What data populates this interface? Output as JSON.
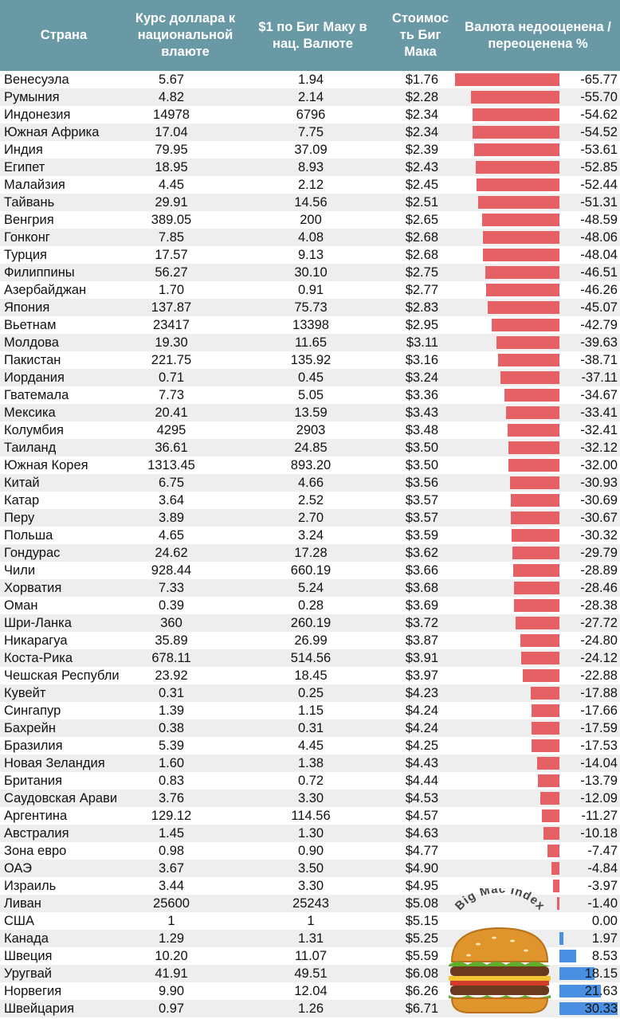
{
  "header": {
    "country": "Страна",
    "rate": "Курс доллара к\nнациональной\nвлаюте",
    "local_price": "$1 по Биг Маку в\nнац. Валюте",
    "usd_price": "Стоимос\nть Биг\nМака",
    "valuation": "Валюта недооценена /\nпереоценена %"
  },
  "colors": {
    "header_bg": "#6a99a6",
    "negative_bar": "#e56166",
    "positive_bar": "#4a90e2",
    "stripe": "#eeeeee"
  },
  "logo": {
    "text": "Big Mac Index",
    "icon": "burger-icon"
  },
  "chart_data": {
    "type": "table",
    "columns": [
      "Страна",
      "Курс доллара к национальной влаюте",
      "$1 по Биг Маку в нац. Валюте",
      "Стоимость Биг Мака",
      "Валюта недооценена / переоценена %"
    ],
    "rows": [
      {
        "country": "Венесуэла",
        "rate": "5.67",
        "local": "1.94",
        "price": "$1.76",
        "pct": "-65.77",
        "value": -65.77
      },
      {
        "country": "Румыния",
        "rate": "4.82",
        "local": "2.14",
        "price": "$2.28",
        "pct": "-55.70",
        "value": -55.7
      },
      {
        "country": "Индонезия",
        "rate": "14978",
        "local": "6796",
        "price": "$2.34",
        "pct": "-54.62",
        "value": -54.62
      },
      {
        "country": "Южная Африка",
        "rate": "17.04",
        "local": "7.75",
        "price": "$2.34",
        "pct": "-54.52",
        "value": -54.52
      },
      {
        "country": "Индия",
        "rate": "79.95",
        "local": "37.09",
        "price": "$2.39",
        "pct": "-53.61",
        "value": -53.61
      },
      {
        "country": "Египет",
        "rate": "18.95",
        "local": "8.93",
        "price": "$2.43",
        "pct": "-52.85",
        "value": -52.85
      },
      {
        "country": "Малайзия",
        "rate": "4.45",
        "local": "2.12",
        "price": "$2.45",
        "pct": "-52.44",
        "value": -52.44
      },
      {
        "country": "Тайвань",
        "rate": "29.91",
        "local": "14.56",
        "price": "$2.51",
        "pct": "-51.31",
        "value": -51.31
      },
      {
        "country": "Венгрия",
        "rate": "389.05",
        "local": "200",
        "price": "$2.65",
        "pct": "-48.59",
        "value": -48.59
      },
      {
        "country": "Гонконг",
        "rate": "7.85",
        "local": "4.08",
        "price": "$2.68",
        "pct": "-48.06",
        "value": -48.06
      },
      {
        "country": "Турция",
        "rate": "17.57",
        "local": "9.13",
        "price": "$2.68",
        "pct": "-48.04",
        "value": -48.04
      },
      {
        "country": "Филиппины",
        "rate": "56.27",
        "local": "30.10",
        "price": "$2.75",
        "pct": "-46.51",
        "value": -46.51
      },
      {
        "country": "Азербайджан",
        "rate": "1.70",
        "local": "0.91",
        "price": "$2.77",
        "pct": "-46.26",
        "value": -46.26
      },
      {
        "country": "Япония",
        "rate": "137.87",
        "local": "75.73",
        "price": "$2.83",
        "pct": "-45.07",
        "value": -45.07
      },
      {
        "country": "Вьетнам",
        "rate": "23417",
        "local": "13398",
        "price": "$2.95",
        "pct": "-42.79",
        "value": -42.79
      },
      {
        "country": "Молдова",
        "rate": "19.30",
        "local": "11.65",
        "price": "$3.11",
        "pct": "-39.63",
        "value": -39.63
      },
      {
        "country": "Пакистан",
        "rate": "221.75",
        "local": "135.92",
        "price": "$3.16",
        "pct": "-38.71",
        "value": -38.71
      },
      {
        "country": "Иордания",
        "rate": "0.71",
        "local": "0.45",
        "price": "$3.24",
        "pct": "-37.11",
        "value": -37.11
      },
      {
        "country": "Гватемала",
        "rate": "7.73",
        "local": "5.05",
        "price": "$3.36",
        "pct": "-34.67",
        "value": -34.67
      },
      {
        "country": "Мексика",
        "rate": "20.41",
        "local": "13.59",
        "price": "$3.43",
        "pct": "-33.41",
        "value": -33.41
      },
      {
        "country": "Колумбия",
        "rate": "4295",
        "local": "2903",
        "price": "$3.48",
        "pct": "-32.41",
        "value": -32.41
      },
      {
        "country": "Таиланд",
        "rate": "36.61",
        "local": "24.85",
        "price": "$3.50",
        "pct": "-32.12",
        "value": -32.12
      },
      {
        "country": "Южная Корея",
        "rate": "1313.45",
        "local": "893.20",
        "price": "$3.50",
        "pct": "-32.00",
        "value": -32.0
      },
      {
        "country": "Китай",
        "rate": "6.75",
        "local": "4.66",
        "price": "$3.56",
        "pct": "-30.93",
        "value": -30.93
      },
      {
        "country": "Катар",
        "rate": "3.64",
        "local": "2.52",
        "price": "$3.57",
        "pct": "-30.69",
        "value": -30.69
      },
      {
        "country": "Перу",
        "rate": "3.89",
        "local": "2.70",
        "price": "$3.57",
        "pct": "-30.67",
        "value": -30.67
      },
      {
        "country": "Польша",
        "rate": "4.65",
        "local": "3.24",
        "price": "$3.59",
        "pct": "-30.32",
        "value": -30.32
      },
      {
        "country": "Гондурас",
        "rate": "24.62",
        "local": "17.28",
        "price": "$3.62",
        "pct": "-29.79",
        "value": -29.79
      },
      {
        "country": "Чили",
        "rate": "928.44",
        "local": "660.19",
        "price": "$3.66",
        "pct": "-28.89",
        "value": -28.89
      },
      {
        "country": "Хорватия",
        "rate": "7.33",
        "local": "5.24",
        "price": "$3.68",
        "pct": "-28.46",
        "value": -28.46
      },
      {
        "country": "Оман",
        "rate": "0.39",
        "local": "0.28",
        "price": "$3.69",
        "pct": "-28.38",
        "value": -28.38
      },
      {
        "country": "Шри-Ланка",
        "rate": "360",
        "local": "260.19",
        "price": "$3.72",
        "pct": "-27.72",
        "value": -27.72
      },
      {
        "country": "Никарагуа",
        "rate": "35.89",
        "local": "26.99",
        "price": "$3.87",
        "pct": "-24.80",
        "value": -24.8
      },
      {
        "country": "Коста-Рика",
        "rate": "678.11",
        "local": "514.56",
        "price": "$3.91",
        "pct": "-24.12",
        "value": -24.12
      },
      {
        "country": "Чешская Республи",
        "rate": "23.92",
        "local": "18.45",
        "price": "$3.97",
        "pct": "-22.88",
        "value": -22.88
      },
      {
        "country": "Кувейт",
        "rate": "0.31",
        "local": "0.25",
        "price": "$4.23",
        "pct": "-17.88",
        "value": -17.88
      },
      {
        "country": "Сингапур",
        "rate": "1.39",
        "local": "1.15",
        "price": "$4.24",
        "pct": "-17.66",
        "value": -17.66
      },
      {
        "country": "Бахрейн",
        "rate": "0.38",
        "local": "0.31",
        "price": "$4.24",
        "pct": "-17.59",
        "value": -17.59
      },
      {
        "country": "Бразилия",
        "rate": "5.39",
        "local": "4.45",
        "price": "$4.25",
        "pct": "-17.53",
        "value": -17.53
      },
      {
        "country": "Новая Зеландия",
        "rate": "1.60",
        "local": "1.38",
        "price": "$4.43",
        "pct": "-14.04",
        "value": -14.04
      },
      {
        "country": "Британия",
        "rate": "0.83",
        "local": "0.72",
        "price": "$4.44",
        "pct": "-13.79",
        "value": -13.79
      },
      {
        "country": "Саудовская Арави",
        "rate": "3.76",
        "local": "3.30",
        "price": "$4.53",
        "pct": "-12.09",
        "value": -12.09
      },
      {
        "country": "Аргентина",
        "rate": "129.12",
        "local": "114.56",
        "price": "$4.57",
        "pct": "-11.27",
        "value": -11.27
      },
      {
        "country": "Австралия",
        "rate": "1.45",
        "local": "1.30",
        "price": "$4.63",
        "pct": "-10.18",
        "value": -10.18
      },
      {
        "country": "Зона евро",
        "rate": "0.98",
        "local": "0.90",
        "price": "$4.77",
        "pct": "-7.47",
        "value": -7.47
      },
      {
        "country": "ОАЭ",
        "rate": "3.67",
        "local": "3.50",
        "price": "$4.90",
        "pct": "-4.84",
        "value": -4.84
      },
      {
        "country": "Израиль",
        "rate": "3.44",
        "local": "3.30",
        "price": "$4.95",
        "pct": "-3.97",
        "value": -3.97
      },
      {
        "country": "Ливан",
        "rate": "25600",
        "local": "25243",
        "price": "$5.08",
        "pct": "-1.40",
        "value": -1.4
      },
      {
        "country": "США",
        "rate": "1",
        "local": "1",
        "price": "$5.15",
        "pct": "0.00",
        "value": 0.0
      },
      {
        "country": "Канада",
        "rate": "1.29",
        "local": "1.31",
        "price": "$5.25",
        "pct": "1.97",
        "value": 1.97
      },
      {
        "country": "Швеция",
        "rate": "10.20",
        "local": "11.07",
        "price": "$5.59",
        "pct": "8.53",
        "value": 8.53
      },
      {
        "country": "Уругвай",
        "rate": "41.91",
        "local": "49.51",
        "price": "$6.08",
        "pct": "18.15",
        "value": 18.15
      },
      {
        "country": "Норвегия",
        "rate": "9.90",
        "local": "12.04",
        "price": "$6.26",
        "pct": "21.63",
        "value": 21.63
      },
      {
        "country": "Швейцария",
        "rate": "0.97",
        "local": "1.26",
        "price": "$6.71",
        "pct": "30.33",
        "value": 30.33
      }
    ]
  }
}
